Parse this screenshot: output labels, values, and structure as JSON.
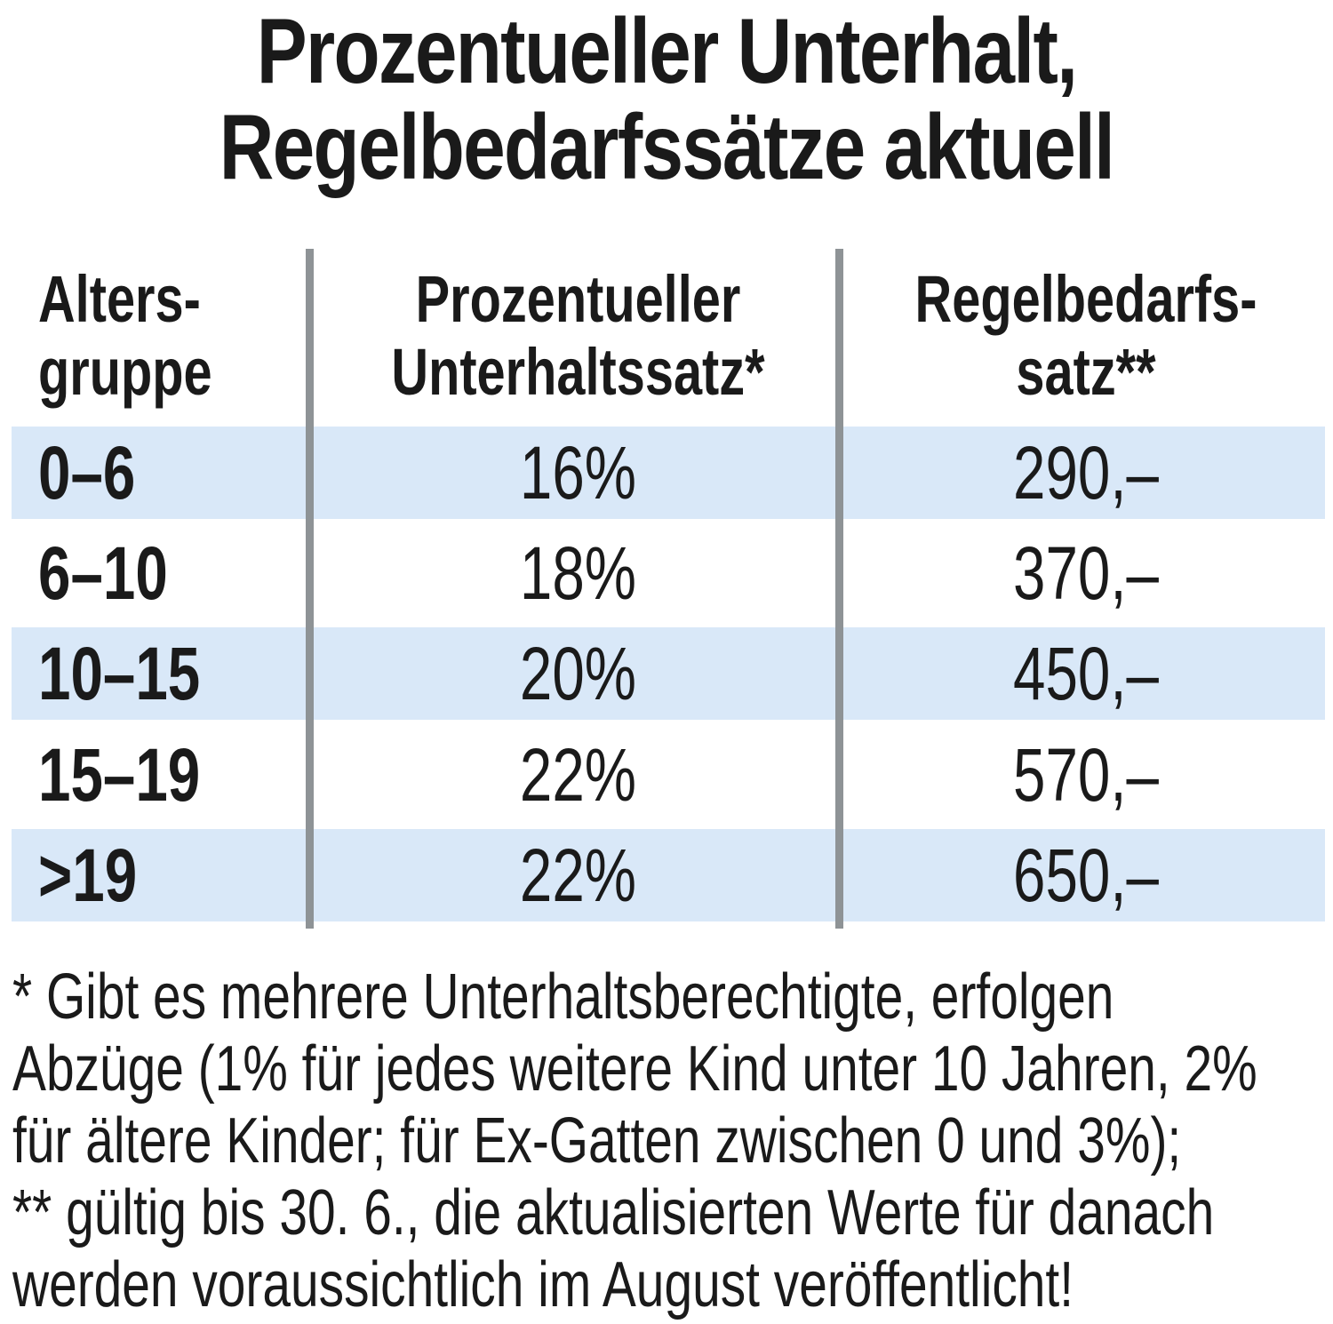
{
  "title": {
    "line1": "Prozentueller Unterhalt,",
    "line2": "Regelbedarfssätze aktuell"
  },
  "chart_data": {
    "type": "table",
    "columns": [
      [
        "Alters-",
        "gruppe"
      ],
      [
        "Prozentueller",
        "Unterhaltssatz*"
      ],
      [
        "Regelbedarfs-",
        "satz**"
      ]
    ],
    "rows": [
      [
        "0–6",
        "16%",
        "290,–"
      ],
      [
        "6–10",
        "18%",
        "370,–"
      ],
      [
        "10–15",
        "20%",
        "450,–"
      ],
      [
        "15–19",
        "22%",
        "570,–"
      ],
      [
        ">19",
        "22%",
        "650,–"
      ]
    ]
  },
  "footnotes": [
    "* Gibt es mehrere Unterhaltsberechtigte, erfolgen",
    "Abzüge (1% für jedes weitere Kind unter 10 Jahren, 2%",
    "für ältere Kinder; für Ex-Gatten zwischen 0 und 3%);",
    "** gültig bis 30. 6., die aktualisierten Werte für danach",
    "werden voraussichtlich im August veröffentlicht!"
  ],
  "colors": {
    "row_shade": "#d9e8f8",
    "divider": "#8e9396",
    "text": "#1a1a1a"
  }
}
